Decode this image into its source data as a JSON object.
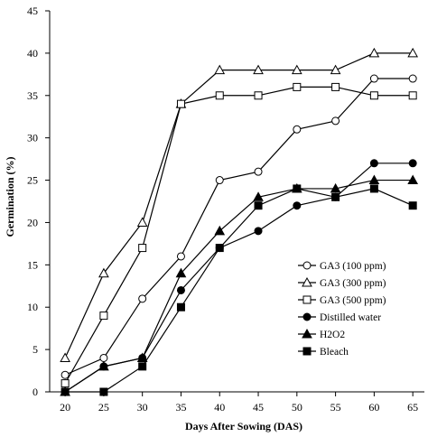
{
  "chart_data": {
    "type": "line",
    "x": [
      20,
      25,
      30,
      35,
      40,
      45,
      50,
      55,
      60,
      65
    ],
    "xlabel": "Days After Sowing  (DAS)",
    "ylabel": "Germination  (%)",
    "ylim": [
      0,
      45
    ],
    "yticks": [
      0,
      5,
      10,
      15,
      20,
      25,
      30,
      35,
      40,
      45
    ],
    "grid": false,
    "legend_position": "bottom-right",
    "series": [
      {
        "name": "GA3 (100 ppm)",
        "marker": "circle-open",
        "values": [
          2,
          4,
          11,
          16,
          25,
          26,
          31,
          32,
          37,
          37
        ]
      },
      {
        "name": "GA3 (300 ppm)",
        "marker": "triangle-open",
        "values": [
          4,
          14,
          20,
          34,
          38,
          38,
          38,
          38,
          40,
          40
        ]
      },
      {
        "name": "GA3 (500 ppm)",
        "marker": "square-open",
        "values": [
          1,
          9,
          17,
          34,
          35,
          35,
          36,
          36,
          35,
          35
        ]
      },
      {
        "name": "Distilled water",
        "marker": "circle-filled",
        "values": [
          0,
          3,
          4,
          12,
          17,
          19,
          22,
          23,
          27,
          27
        ]
      },
      {
        "name": "H2O2",
        "marker": "triangle-filled",
        "values": [
          0,
          3,
          4,
          14,
          19,
          23,
          24,
          24,
          25,
          25
        ]
      },
      {
        "name": "Bleach",
        "marker": "square-filled",
        "values": [
          0,
          0,
          3,
          10,
          17,
          22,
          24,
          23,
          24,
          22
        ]
      }
    ]
  }
}
